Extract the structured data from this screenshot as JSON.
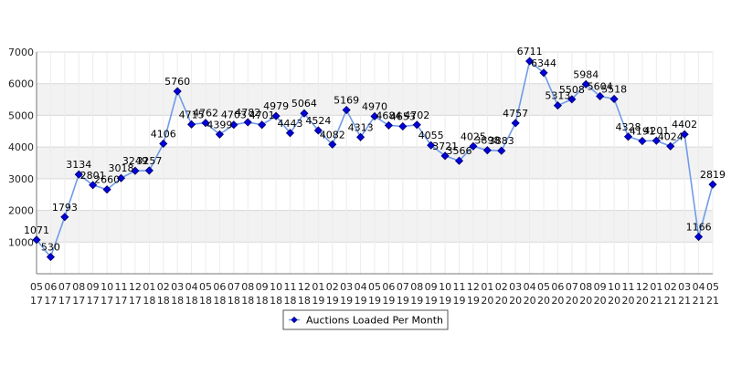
{
  "chart_data": {
    "type": "line",
    "title": "",
    "xlabel": "",
    "ylabel": "",
    "ylim": [
      0,
      7000
    ],
    "yticks": [
      1000,
      2000,
      3000,
      4000,
      5000,
      6000,
      7000
    ],
    "grid": true,
    "legend_position": "bottom-center",
    "colors": {
      "line": "#6f9be8",
      "marker": "#0000dd",
      "marker_edge": "#000066",
      "band": "#f2f2f2",
      "grid": "#d8d8d8"
    },
    "categories": [
      [
        "05",
        "17"
      ],
      [
        "06",
        "17"
      ],
      [
        "07",
        "17"
      ],
      [
        "08",
        "17"
      ],
      [
        "09",
        "17"
      ],
      [
        "10",
        "17"
      ],
      [
        "11",
        "17"
      ],
      [
        "12",
        "17"
      ],
      [
        "01",
        "18"
      ],
      [
        "02",
        "18"
      ],
      [
        "03",
        "18"
      ],
      [
        "04",
        "18"
      ],
      [
        "05",
        "18"
      ],
      [
        "06",
        "18"
      ],
      [
        "07",
        "18"
      ],
      [
        "08",
        "18"
      ],
      [
        "09",
        "18"
      ],
      [
        "10",
        "18"
      ],
      [
        "11",
        "18"
      ],
      [
        "12",
        "18"
      ],
      [
        "01",
        "19"
      ],
      [
        "02",
        "19"
      ],
      [
        "03",
        "19"
      ],
      [
        "04",
        "19"
      ],
      [
        "05",
        "19"
      ],
      [
        "06",
        "19"
      ],
      [
        "07",
        "19"
      ],
      [
        "08",
        "19"
      ],
      [
        "09",
        "19"
      ],
      [
        "10",
        "19"
      ],
      [
        "11",
        "19"
      ],
      [
        "12",
        "19"
      ],
      [
        "01",
        "20"
      ],
      [
        "02",
        "20"
      ],
      [
        "03",
        "20"
      ],
      [
        "04",
        "20"
      ],
      [
        "05",
        "20"
      ],
      [
        "06",
        "20"
      ],
      [
        "07",
        "20"
      ],
      [
        "08",
        "20"
      ],
      [
        "09",
        "20"
      ],
      [
        "10",
        "20"
      ],
      [
        "11",
        "20"
      ],
      [
        "12",
        "20"
      ],
      [
        "01",
        "21"
      ],
      [
        "02",
        "21"
      ],
      [
        "03",
        "21"
      ],
      [
        "04",
        "21"
      ],
      [
        "05",
        "21"
      ]
    ],
    "series": [
      {
        "name": "Auctions Loaded Per Month",
        "values": [
          1071,
          530,
          1793,
          3134,
          2801,
          2660,
          3018,
          3249,
          3257,
          4106,
          5760,
          4715,
          4762,
          4399,
          4703,
          4782,
          4701,
          4979,
          4443,
          5064,
          4524,
          4082,
          5169,
          4313,
          4970,
          4684,
          4653,
          4702,
          4055,
          3721,
          3566,
          4025,
          3898,
          3883,
          4757,
          6711,
          6344,
          5313,
          5508,
          5984,
          5604,
          5518,
          4328,
          4191,
          4201,
          4024,
          4402,
          1166,
          2819
        ]
      }
    ]
  }
}
